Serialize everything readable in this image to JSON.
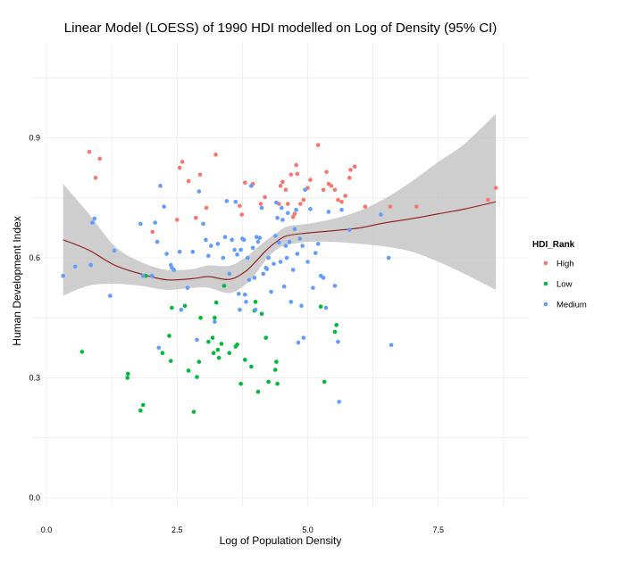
{
  "chart_data": {
    "type": "scatter",
    "title": "Linear Model (LOESS) of 1990 HDI modelled on Log of Density (95% CI)",
    "xlabel": "Log of Population Density",
    "ylabel": "Human Development Index",
    "xlim": [
      0.0,
      9.0
    ],
    "ylim": [
      -0.02,
      1.0
    ],
    "x_ticks": [
      0.0,
      2.5,
      5.0,
      7.5
    ],
    "x_tick_labels": [
      "0.0",
      "2.5",
      "5.0",
      "7.5"
    ],
    "y_ticks": [
      0.0,
      0.3,
      0.6,
      0.9
    ],
    "y_tick_labels": [
      "0.0",
      "0.3",
      "0.6",
      "0.9"
    ],
    "grid": true,
    "legend": {
      "title": "HDI_Rank",
      "placement": "right"
    },
    "colors": {
      "High": "#F8766D",
      "Low": "#00BA38",
      "Medium": "#619CFF",
      "fit_line": "#8B1A1A",
      "ci_band": "#BEBEBE"
    },
    "series": [
      {
        "name": "High",
        "points": [
          [
            0.82,
            0.865
          ],
          [
            0.94,
            0.8
          ],
          [
            1.02,
            0.848
          ],
          [
            2.03,
            0.665
          ],
          [
            2.5,
            0.695
          ],
          [
            2.55,
            0.825
          ],
          [
            2.6,
            0.84
          ],
          [
            2.72,
            0.792
          ],
          [
            2.86,
            0.7
          ],
          [
            2.94,
            0.808
          ],
          [
            3.06,
            0.725
          ],
          [
            3.24,
            0.858
          ],
          [
            3.7,
            0.73
          ],
          [
            3.74,
            0.708
          ],
          [
            3.8,
            0.788
          ],
          [
            3.95,
            0.785
          ],
          [
            4.1,
            0.735
          ],
          [
            4.18,
            0.752
          ],
          [
            4.45,
            0.735
          ],
          [
            4.48,
            0.78
          ],
          [
            4.52,
            0.79
          ],
          [
            4.58,
            0.77
          ],
          [
            4.62,
            0.735
          ],
          [
            4.68,
            0.808
          ],
          [
            4.72,
            0.702
          ],
          [
            4.75,
            0.71
          ],
          [
            4.78,
            0.832
          ],
          [
            4.8,
            0.81
          ],
          [
            4.86,
            0.735
          ],
          [
            4.92,
            0.745
          ],
          [
            5.0,
            0.775
          ],
          [
            5.05,
            0.795
          ],
          [
            5.2,
            0.882
          ],
          [
            5.3,
            0.77
          ],
          [
            5.36,
            0.815
          ],
          [
            5.4,
            0.785
          ],
          [
            5.45,
            0.78
          ],
          [
            5.52,
            0.77
          ],
          [
            5.58,
            0.745
          ],
          [
            5.65,
            0.74
          ],
          [
            5.72,
            0.755
          ],
          [
            5.8,
            0.8
          ],
          [
            5.82,
            0.82
          ],
          [
            5.9,
            0.828
          ],
          [
            6.1,
            0.728
          ],
          [
            6.58,
            0.728
          ],
          [
            7.08,
            0.728
          ],
          [
            8.45,
            0.745
          ],
          [
            8.6,
            0.775
          ]
        ]
      },
      {
        "name": "Low",
        "points": [
          [
            0.68,
            0.365
          ],
          [
            1.55,
            0.3
          ],
          [
            1.56,
            0.31
          ],
          [
            1.8,
            0.218
          ],
          [
            1.85,
            0.232
          ],
          [
            1.9,
            0.555
          ],
          [
            2.22,
            0.362
          ],
          [
            2.35,
            0.405
          ],
          [
            2.38,
            0.342
          ],
          [
            2.4,
            0.475
          ],
          [
            2.65,
            0.48
          ],
          [
            2.72,
            0.318
          ],
          [
            2.82,
            0.215
          ],
          [
            2.88,
            0.302
          ],
          [
            2.92,
            0.34
          ],
          [
            2.95,
            0.45
          ],
          [
            3.1,
            0.39
          ],
          [
            3.18,
            0.4
          ],
          [
            3.2,
            0.362
          ],
          [
            3.22,
            0.45
          ],
          [
            3.25,
            0.488
          ],
          [
            3.28,
            0.37
          ],
          [
            3.3,
            0.35
          ],
          [
            3.35,
            0.385
          ],
          [
            3.4,
            0.53
          ],
          [
            3.5,
            0.362
          ],
          [
            3.62,
            0.378
          ],
          [
            3.65,
            0.383
          ],
          [
            3.72,
            0.285
          ],
          [
            3.8,
            0.345
          ],
          [
            3.92,
            0.328
          ],
          [
            3.98,
            0.468
          ],
          [
            4.0,
            0.49
          ],
          [
            4.05,
            0.265
          ],
          [
            4.12,
            0.46
          ],
          [
            4.2,
            0.4
          ],
          [
            4.25,
            0.29
          ],
          [
            4.38,
            0.32
          ],
          [
            4.4,
            0.34
          ],
          [
            4.42,
            0.285
          ],
          [
            5.25,
            0.478
          ],
          [
            5.32,
            0.29
          ],
          [
            5.52,
            0.415
          ],
          [
            5.55,
            0.432
          ]
        ]
      },
      {
        "name": "Medium",
        "points": [
          [
            0.32,
            0.555
          ],
          [
            0.55,
            0.578
          ],
          [
            0.85,
            0.582
          ],
          [
            0.88,
            0.688
          ],
          [
            0.92,
            0.698
          ],
          [
            1.22,
            0.505
          ],
          [
            1.3,
            0.618
          ],
          [
            1.8,
            0.685
          ],
          [
            1.85,
            0.555
          ],
          [
            2.02,
            0.555
          ],
          [
            2.08,
            0.688
          ],
          [
            2.12,
            0.64
          ],
          [
            2.15,
            0.375
          ],
          [
            2.18,
            0.78
          ],
          [
            2.25,
            0.728
          ],
          [
            2.3,
            0.61
          ],
          [
            2.38,
            0.582
          ],
          [
            2.4,
            0.575
          ],
          [
            2.44,
            0.57
          ],
          [
            2.55,
            0.615
          ],
          [
            2.58,
            0.47
          ],
          [
            2.7,
            0.525
          ],
          [
            2.8,
            0.615
          ],
          [
            2.88,
            0.395
          ],
          [
            2.92,
            0.766
          ],
          [
            3.0,
            0.685
          ],
          [
            3.05,
            0.645
          ],
          [
            3.1,
            0.605
          ],
          [
            3.15,
            0.63
          ],
          [
            3.22,
            0.44
          ],
          [
            3.28,
            0.635
          ],
          [
            3.38,
            0.6
          ],
          [
            3.42,
            0.652
          ],
          [
            3.45,
            0.742
          ],
          [
            3.5,
            0.56
          ],
          [
            3.55,
            0.645
          ],
          [
            3.6,
            0.62
          ],
          [
            3.62,
            0.74
          ],
          [
            3.65,
            0.608
          ],
          [
            3.68,
            0.51
          ],
          [
            3.7,
            0.47
          ],
          [
            3.72,
            0.62
          ],
          [
            3.75,
            0.648
          ],
          [
            3.78,
            0.645
          ],
          [
            3.8,
            0.508
          ],
          [
            3.82,
            0.49
          ],
          [
            3.85,
            0.6
          ],
          [
            3.88,
            0.545
          ],
          [
            3.92,
            0.78
          ],
          [
            3.95,
            0.625
          ],
          [
            3.98,
            0.55
          ],
          [
            4.0,
            0.47
          ],
          [
            4.02,
            0.652
          ],
          [
            4.05,
            0.64
          ],
          [
            4.08,
            0.65
          ],
          [
            4.12,
            0.725
          ],
          [
            4.15,
            0.56
          ],
          [
            4.2,
            0.575
          ],
          [
            4.22,
            0.572
          ],
          [
            4.25,
            0.6
          ],
          [
            4.3,
            0.515
          ],
          [
            4.35,
            0.585
          ],
          [
            4.38,
            0.655
          ],
          [
            4.4,
            0.738
          ],
          [
            4.42,
            0.7
          ],
          [
            4.45,
            0.638
          ],
          [
            4.48,
            0.59
          ],
          [
            4.5,
            0.725
          ],
          [
            4.52,
            0.695
          ],
          [
            4.55,
            0.528
          ],
          [
            4.58,
            0.63
          ],
          [
            4.6,
            0.6
          ],
          [
            4.62,
            0.712
          ],
          [
            4.65,
            0.64
          ],
          [
            4.68,
            0.49
          ],
          [
            4.72,
            0.57
          ],
          [
            4.75,
            0.672
          ],
          [
            4.78,
            0.72
          ],
          [
            4.8,
            0.61
          ],
          [
            4.82,
            0.388
          ],
          [
            4.85,
            0.648
          ],
          [
            4.88,
            0.48
          ],
          [
            4.9,
            0.63
          ],
          [
            4.92,
            0.4
          ],
          [
            4.95,
            0.77
          ],
          [
            5.0,
            0.59
          ],
          [
            5.05,
            0.722
          ],
          [
            5.1,
            0.525
          ],
          [
            5.15,
            0.612
          ],
          [
            5.2,
            0.635
          ],
          [
            5.25,
            0.555
          ],
          [
            5.3,
            0.55
          ],
          [
            5.35,
            0.475
          ],
          [
            5.4,
            0.715
          ],
          [
            5.52,
            0.53
          ],
          [
            5.58,
            0.39
          ],
          [
            5.6,
            0.24
          ],
          [
            5.65,
            0.72
          ],
          [
            5.8,
            0.67
          ],
          [
            6.4,
            0.708
          ],
          [
            6.55,
            0.6
          ],
          [
            6.6,
            0.382
          ]
        ]
      }
    ],
    "loess_fit": {
      "x": [
        0.32,
        0.8,
        1.3,
        1.8,
        2.3,
        2.8,
        3.1,
        3.5,
        3.8,
        4.0,
        4.2,
        4.4,
        4.6,
        5.0,
        5.5,
        6.0,
        6.5,
        7.0,
        7.5,
        8.0,
        8.6
      ],
      "y": [
        0.645,
        0.62,
        0.582,
        0.56,
        0.545,
        0.548,
        0.553,
        0.546,
        0.565,
        0.59,
        0.618,
        0.64,
        0.655,
        0.662,
        0.668,
        0.675,
        0.688,
        0.698,
        0.71,
        0.722,
        0.74
      ],
      "lower": [
        0.505,
        0.53,
        0.535,
        0.53,
        0.52,
        0.525,
        0.525,
        0.512,
        0.532,
        0.56,
        0.595,
        0.62,
        0.632,
        0.64,
        0.64,
        0.635,
        0.628,
        0.615,
        0.59,
        0.56,
        0.52
      ],
      "upper": [
        0.785,
        0.712,
        0.63,
        0.59,
        0.57,
        0.572,
        0.581,
        0.58,
        0.6,
        0.622,
        0.643,
        0.661,
        0.678,
        0.685,
        0.698,
        0.718,
        0.75,
        0.792,
        0.84,
        0.885,
        0.96
      ]
    }
  }
}
